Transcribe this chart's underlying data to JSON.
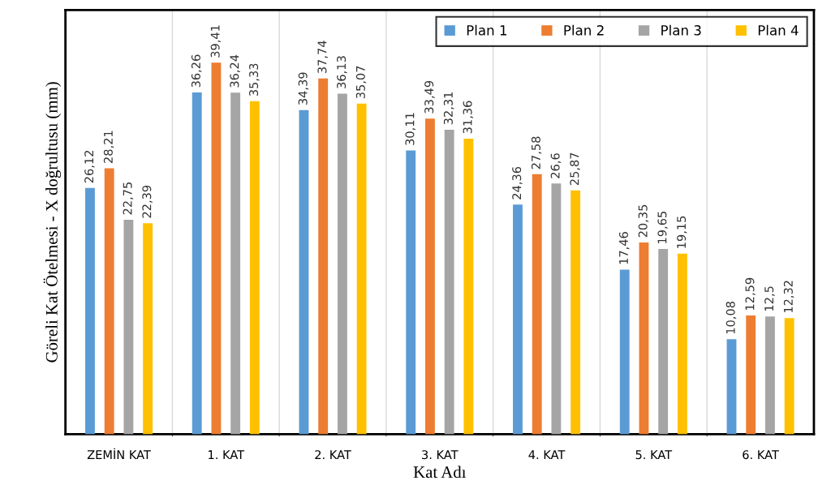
{
  "chart_data": {
    "type": "bar",
    "xlabel": "Kat Adı",
    "ylabel": "Göreli Kat Ötelmesi - X doğrultusu (mm)",
    "categories": [
      "ZEMİN KAT",
      "1. KAT",
      "2. KAT",
      "3. KAT",
      "4. KAT",
      "5. KAT",
      "6. KAT"
    ],
    "series": [
      {
        "name": "Plan 1",
        "color": "#5b9bd5",
        "values": [
          26.12,
          36.26,
          34.39,
          30.11,
          24.36,
          17.46,
          10.08
        ],
        "value_labels": [
          "26,12",
          "36,26",
          "34,39",
          "30,11",
          "24,36",
          "17,46",
          "10,08"
        ]
      },
      {
        "name": "Plan 2",
        "color": "#ed7d31",
        "values": [
          28.21,
          39.41,
          37.74,
          33.49,
          27.58,
          20.35,
          12.59
        ],
        "value_labels": [
          "28,21",
          "39,41",
          "37,74",
          "33,49",
          "27,58",
          "20,35",
          "12,59"
        ]
      },
      {
        "name": "Plan 3",
        "color": "#a5a5a5",
        "values": [
          22.75,
          36.24,
          36.13,
          32.31,
          26.6,
          19.65,
          12.5
        ],
        "value_labels": [
          "22,75",
          "36,24",
          "36,13",
          "32,31",
          "26,6",
          "19,65",
          "12,5"
        ]
      },
      {
        "name": "Plan 4",
        "color": "#ffc000",
        "values": [
          22.39,
          35.33,
          35.07,
          31.36,
          25.87,
          19.15,
          12.32
        ],
        "value_labels": [
          "22,39",
          "35,33",
          "35,07",
          "31,36",
          "25,87",
          "19,15",
          "12,32"
        ]
      }
    ],
    "ylim": [
      0,
      45
    ],
    "tick_labels": "x",
    "grid": "x",
    "legend": "top right"
  }
}
